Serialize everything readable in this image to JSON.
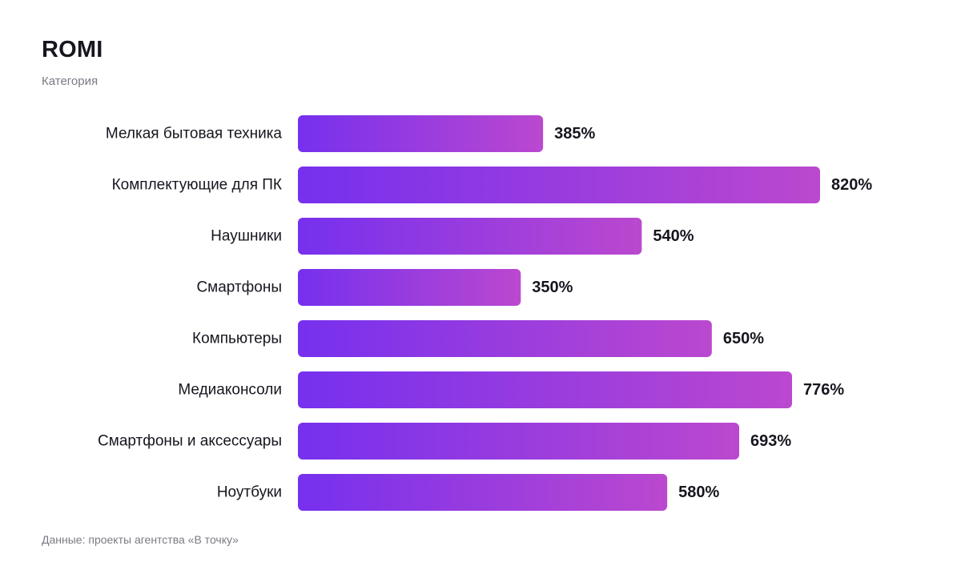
{
  "header": {
    "title": "ROMI",
    "subtitle": "Категория"
  },
  "footer": {
    "source": "Данные: проекты агентства «В точку»"
  },
  "colors": {
    "bar_gradient_start": "#7630ee",
    "bar_gradient_end": "#bb48cf",
    "text": "#16161f",
    "muted_text": "#7a7a85"
  },
  "chart_data": {
    "type": "bar",
    "orientation": "horizontal",
    "title": "ROMI",
    "subtitle": "Категория",
    "categories": [
      "Мелкая бытовая техника",
      "Комплектующие для ПК",
      "Наушники",
      "Смартфоны",
      "Компьютеры",
      "Медиаконсоли",
      "Смартфоны и аксессуары",
      "Ноутбуки"
    ],
    "values": [
      385,
      820,
      540,
      350,
      650,
      776,
      693,
      580
    ],
    "value_labels": [
      "385%",
      "820%",
      "540%",
      "350%",
      "650%",
      "776%",
      "693%",
      "580%"
    ],
    "unit": "%",
    "xlim": [
      0,
      820
    ],
    "grid": false,
    "legend": "none"
  }
}
